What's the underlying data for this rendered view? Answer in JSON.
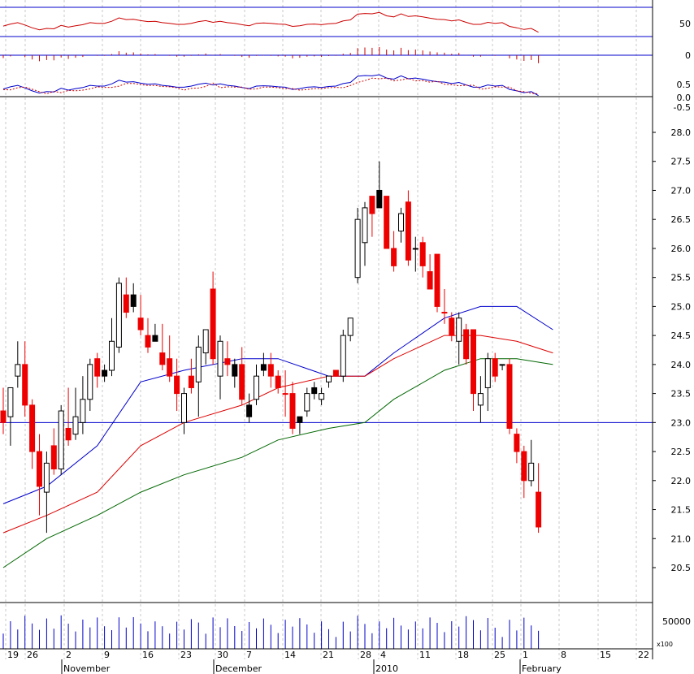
{
  "chart_data": {
    "type": "candlestick",
    "price_axis": {
      "ticks": [
        "20.5",
        "21.0",
        "21.5",
        "22.0",
        "22.5",
        "23.0",
        "23.5",
        "24.0",
        "24.5",
        "25.0",
        "25.5",
        "26.0",
        "26.5",
        "27.0",
        "27.5",
        "28.0"
      ],
      "range": [
        20.2,
        28.2
      ],
      "reference_level": 23.0
    },
    "x_axis": {
      "day_labels": [
        "19",
        "26",
        "2",
        "9",
        "16",
        "23",
        "30",
        "7",
        "14",
        "21",
        "28",
        "4",
        "11",
        "18",
        "25",
        "1",
        "8",
        "15",
        "22"
      ],
      "month_labels": [
        "November",
        "December",
        "2010",
        "February"
      ]
    },
    "candles": [
      {
        "o": 23.2,
        "h": 23.6,
        "l": 22.8,
        "c": 23.0,
        "color": "red"
      },
      {
        "o": 23.1,
        "h": 23.6,
        "l": 22.6,
        "c": 23.6,
        "color": "white"
      },
      {
        "o": 23.8,
        "h": 24.4,
        "l": 23.6,
        "c": 24.0,
        "color": "white"
      },
      {
        "o": 24.0,
        "h": 24.4,
        "l": 23.1,
        "c": 23.3,
        "color": "red"
      },
      {
        "o": 23.3,
        "h": 23.4,
        "l": 22.2,
        "c": 22.5,
        "color": "red"
      },
      {
        "o": 22.5,
        "h": 22.8,
        "l": 21.4,
        "c": 21.9,
        "color": "red"
      },
      {
        "o": 21.8,
        "h": 22.5,
        "l": 21.1,
        "c": 22.3,
        "color": "white"
      },
      {
        "o": 22.6,
        "h": 22.9,
        "l": 22.1,
        "c": 22.2,
        "color": "red"
      },
      {
        "o": 22.2,
        "h": 23.3,
        "l": 22.1,
        "c": 23.2,
        "color": "white"
      },
      {
        "o": 22.9,
        "h": 23.6,
        "l": 22.6,
        "c": 22.7,
        "color": "red"
      },
      {
        "o": 22.8,
        "h": 23.6,
        "l": 22.7,
        "c": 23.1,
        "color": "white"
      },
      {
        "o": 23.0,
        "h": 23.8,
        "l": 22.8,
        "c": 23.4,
        "color": "white"
      },
      {
        "o": 23.4,
        "h": 24.1,
        "l": 23.2,
        "c": 24.0,
        "color": "white"
      },
      {
        "o": 24.1,
        "h": 24.2,
        "l": 23.6,
        "c": 23.8,
        "color": "red"
      },
      {
        "o": 23.9,
        "h": 24.0,
        "l": 23.7,
        "c": 23.8,
        "color": "black"
      },
      {
        "o": 23.9,
        "h": 24.8,
        "l": 23.8,
        "c": 24.4,
        "color": "white"
      },
      {
        "o": 24.3,
        "h": 25.5,
        "l": 24.2,
        "c": 25.4,
        "color": "white"
      },
      {
        "o": 25.2,
        "h": 25.5,
        "l": 24.8,
        "c": 24.9,
        "color": "red"
      },
      {
        "o": 25.2,
        "h": 25.4,
        "l": 24.9,
        "c": 25.0,
        "color": "black"
      },
      {
        "o": 24.8,
        "h": 25.2,
        "l": 24.5,
        "c": 24.6,
        "color": "red"
      },
      {
        "o": 24.5,
        "h": 24.8,
        "l": 24.2,
        "c": 24.3,
        "color": "red"
      },
      {
        "o": 24.5,
        "h": 24.7,
        "l": 24.4,
        "c": 24.4,
        "color": "black"
      },
      {
        "o": 24.2,
        "h": 24.7,
        "l": 23.9,
        "c": 24.0,
        "color": "red"
      },
      {
        "o": 24.1,
        "h": 24.5,
        "l": 23.7,
        "c": 23.8,
        "color": "red"
      },
      {
        "o": 23.8,
        "h": 24.1,
        "l": 23.2,
        "c": 23.5,
        "color": "red"
      },
      {
        "o": 23.0,
        "h": 23.6,
        "l": 22.8,
        "c": 23.5,
        "color": "white"
      },
      {
        "o": 23.6,
        "h": 24.1,
        "l": 23.5,
        "c": 23.8,
        "color": "red"
      },
      {
        "o": 23.7,
        "h": 24.5,
        "l": 23.1,
        "c": 24.3,
        "color": "white"
      },
      {
        "o": 24.2,
        "h": 24.6,
        "l": 24.0,
        "c": 24.6,
        "color": "white"
      },
      {
        "o": 25.3,
        "h": 25.6,
        "l": 24.0,
        "c": 24.1,
        "color": "red"
      },
      {
        "o": 23.8,
        "h": 24.5,
        "l": 23.4,
        "c": 24.4,
        "color": "white"
      },
      {
        "o": 24.1,
        "h": 24.4,
        "l": 23.8,
        "c": 24.0,
        "color": "red"
      },
      {
        "o": 24.0,
        "h": 24.1,
        "l": 23.6,
        "c": 23.8,
        "color": "black"
      },
      {
        "o": 24.0,
        "h": 24.3,
        "l": 23.3,
        "c": 23.4,
        "color": "red"
      },
      {
        "o": 23.3,
        "h": 23.5,
        "l": 23.0,
        "c": 23.1,
        "color": "black"
      },
      {
        "o": 23.4,
        "h": 24.0,
        "l": 23.3,
        "c": 23.8,
        "color": "white"
      },
      {
        "o": 24.0,
        "h": 24.2,
        "l": 23.8,
        "c": 23.9,
        "color": "black"
      },
      {
        "o": 24.0,
        "h": 24.2,
        "l": 23.6,
        "c": 23.8,
        "color": "red"
      },
      {
        "o": 23.8,
        "h": 23.9,
        "l": 23.5,
        "c": 23.6,
        "color": "red"
      },
      {
        "o": 23.5,
        "h": 23.9,
        "l": 23.1,
        "c": 23.5,
        "color": "red"
      },
      {
        "o": 23.5,
        "h": 23.7,
        "l": 22.8,
        "c": 22.9,
        "color": "red"
      },
      {
        "o": 23.0,
        "h": 23.1,
        "l": 22.8,
        "c": 23.1,
        "color": "black"
      },
      {
        "o": 23.2,
        "h": 23.6,
        "l": 23.1,
        "c": 23.5,
        "color": "white"
      },
      {
        "o": 23.5,
        "h": 23.7,
        "l": 23.4,
        "c": 23.6,
        "color": "black"
      },
      {
        "o": 23.5,
        "h": 23.6,
        "l": 23.3,
        "c": 23.4,
        "color": "white"
      },
      {
        "o": 23.8,
        "h": 23.8,
        "l": 23.6,
        "c": 23.7,
        "color": "white"
      },
      {
        "o": 23.9,
        "h": 23.9,
        "l": 23.8,
        "c": 23.8,
        "color": "red"
      },
      {
        "o": 23.8,
        "h": 24.6,
        "l": 23.7,
        "c": 24.5,
        "color": "white"
      },
      {
        "o": 24.5,
        "h": 24.8,
        "l": 24.4,
        "c": 24.8,
        "color": "white"
      },
      {
        "o": 25.5,
        "h": 26.7,
        "l": 25.4,
        "c": 26.5,
        "color": "white"
      },
      {
        "o": 26.1,
        "h": 26.8,
        "l": 25.7,
        "c": 26.7,
        "color": "white"
      },
      {
        "o": 26.9,
        "h": 26.9,
        "l": 26.2,
        "c": 26.6,
        "color": "red"
      },
      {
        "o": 26.7,
        "h": 27.5,
        "l": 26.7,
        "c": 27.0,
        "color": "black"
      },
      {
        "o": 26.9,
        "h": 26.9,
        "l": 26.0,
        "c": 26.0,
        "color": "red"
      },
      {
        "o": 26.0,
        "h": 26.3,
        "l": 25.6,
        "c": 25.7,
        "color": "red"
      },
      {
        "o": 26.3,
        "h": 26.7,
        "l": 26.1,
        "c": 26.6,
        "color": "white"
      },
      {
        "o": 26.8,
        "h": 27.0,
        "l": 25.7,
        "c": 25.8,
        "color": "red"
      },
      {
        "o": 26.0,
        "h": 26.2,
        "l": 25.6,
        "c": 26.0,
        "color": "black"
      },
      {
        "o": 26.1,
        "h": 26.2,
        "l": 25.5,
        "c": 25.7,
        "color": "red"
      },
      {
        "o": 25.6,
        "h": 25.9,
        "l": 25.3,
        "c": 25.3,
        "color": "red"
      },
      {
        "o": 25.9,
        "h": 25.9,
        "l": 24.9,
        "c": 25.0,
        "color": "red"
      },
      {
        "o": 24.9,
        "h": 25.3,
        "l": 24.7,
        "c": 24.9,
        "color": "red"
      },
      {
        "o": 24.8,
        "h": 24.9,
        "l": 24.4,
        "c": 24.5,
        "color": "red"
      },
      {
        "o": 24.4,
        "h": 24.9,
        "l": 24.0,
        "c": 24.8,
        "color": "white"
      },
      {
        "o": 24.6,
        "h": 24.7,
        "l": 24.0,
        "c": 24.1,
        "color": "red"
      },
      {
        "o": 24.6,
        "h": 24.6,
        "l": 23.2,
        "c": 23.5,
        "color": "red"
      },
      {
        "o": 23.3,
        "h": 23.8,
        "l": 23.0,
        "c": 23.5,
        "color": "white"
      },
      {
        "o": 23.6,
        "h": 24.2,
        "l": 23.2,
        "c": 24.1,
        "color": "white"
      },
      {
        "o": 24.1,
        "h": 24.2,
        "l": 23.7,
        "c": 23.8,
        "color": "red"
      },
      {
        "o": 24.0,
        "h": 24.0,
        "l": 23.9,
        "c": 24.0,
        "color": "black"
      },
      {
        "o": 24.0,
        "h": 24.1,
        "l": 22.8,
        "c": 22.9,
        "color": "red"
      },
      {
        "o": 22.8,
        "h": 22.9,
        "l": 22.3,
        "c": 22.5,
        "color": "red"
      },
      {
        "o": 22.5,
        "h": 22.6,
        "l": 21.7,
        "c": 22.0,
        "color": "red"
      },
      {
        "o": 22.0,
        "h": 22.7,
        "l": 21.9,
        "c": 22.3,
        "color": "white"
      },
      {
        "o": 21.8,
        "h": 22.3,
        "l": 21.1,
        "c": 21.2,
        "color": "red"
      }
    ],
    "moving_averages": [
      {
        "color": "#0000cc",
        "points": [
          [
            0,
            21.6
          ],
          [
            6,
            21.9
          ],
          [
            13,
            22.6
          ],
          [
            19,
            23.7
          ],
          [
            25,
            23.9
          ],
          [
            33,
            24.1
          ],
          [
            38,
            24.1
          ],
          [
            45,
            23.8
          ],
          [
            50,
            23.8
          ],
          [
            54,
            24.2
          ],
          [
            61,
            24.8
          ],
          [
            66,
            25.0
          ],
          [
            71,
            25.0
          ],
          [
            76,
            24.6
          ]
        ]
      },
      {
        "color": "#dd0000",
        "points": [
          [
            0,
            21.1
          ],
          [
            6,
            21.4
          ],
          [
            13,
            21.8
          ],
          [
            19,
            22.6
          ],
          [
            25,
            23.0
          ],
          [
            33,
            23.3
          ],
          [
            38,
            23.6
          ],
          [
            45,
            23.8
          ],
          [
            50,
            23.8
          ],
          [
            54,
            24.1
          ],
          [
            61,
            24.5
          ],
          [
            66,
            24.5
          ],
          [
            71,
            24.4
          ],
          [
            76,
            24.2
          ]
        ]
      },
      {
        "color": "#006600",
        "points": [
          [
            0,
            20.5
          ],
          [
            6,
            21.0
          ],
          [
            13,
            21.4
          ],
          [
            19,
            21.8
          ],
          [
            25,
            22.1
          ],
          [
            33,
            22.4
          ],
          [
            38,
            22.7
          ],
          [
            45,
            22.9
          ],
          [
            50,
            23.0
          ],
          [
            54,
            23.4
          ],
          [
            61,
            23.9
          ],
          [
            66,
            24.1
          ],
          [
            71,
            24.1
          ],
          [
            76,
            24.0
          ]
        ]
      }
    ],
    "indicators": {
      "rsi_panel": {
        "tick": "50",
        "levels": [
          -1
        ]
      },
      "momentum_panel": {
        "tick": "0"
      },
      "macd_panel": {
        "ticks": [
          "0.5",
          "0.0",
          "-0.5"
        ]
      },
      "volume_panel": {
        "tick": "50000",
        "unit": "x100"
      }
    }
  }
}
